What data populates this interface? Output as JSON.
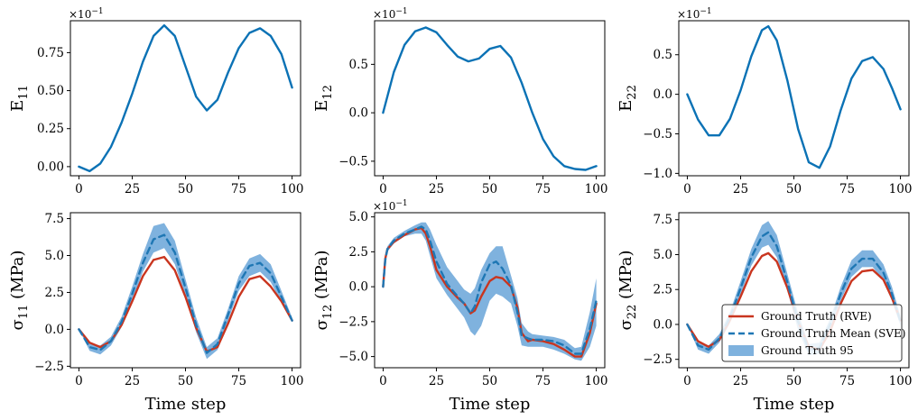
{
  "figure": {
    "x_axis_label": "Time step",
    "colors": {
      "strain": "#0b72b5",
      "rve": "#c9351f",
      "sve": "#1f77b4",
      "band": "#7fb2de"
    }
  },
  "chart_data": [
    {
      "id": "E11",
      "type": "line",
      "ylabel": "E",
      "ylabel_sub": "11",
      "multiplier": "×10",
      "multiplier_exp": "−1",
      "xlim": [
        -4,
        104
      ],
      "ylim": [
        -0.06,
        0.96
      ],
      "yticks": [
        0.0,
        0.25,
        0.5,
        0.75
      ],
      "ytick_labels": [
        "0.00",
        "0.25",
        "0.50",
        "0.75"
      ],
      "xticks": [
        0,
        25,
        50,
        75,
        100
      ],
      "xtick_labels": [
        "0",
        "25",
        "50",
        "75",
        "100"
      ],
      "series": [
        {
          "name": "E11",
          "x": [
            0,
            5,
            10,
            15,
            20,
            25,
            30,
            35,
            40,
            45,
            50,
            55,
            60,
            65,
            70,
            75,
            80,
            85,
            90,
            95,
            100
          ],
          "y": [
            0.0,
            -0.03,
            0.02,
            0.13,
            0.29,
            0.48,
            0.69,
            0.86,
            0.93,
            0.86,
            0.66,
            0.46,
            0.37,
            0.44,
            0.62,
            0.78,
            0.88,
            0.91,
            0.86,
            0.74,
            0.52
          ]
        }
      ]
    },
    {
      "id": "E12",
      "type": "line",
      "ylabel": "E",
      "ylabel_sub": "12",
      "multiplier": "×10",
      "multiplier_exp": "−1",
      "xlim": [
        -4,
        104
      ],
      "ylim": [
        -0.65,
        0.95
      ],
      "yticks": [
        -0.5,
        0.0,
        0.5
      ],
      "ytick_labels": [
        "−0.5",
        "0.0",
        "0.5"
      ],
      "xticks": [
        0,
        25,
        50,
        75,
        100
      ],
      "xtick_labels": [
        "0",
        "25",
        "50",
        "75",
        "100"
      ],
      "series": [
        {
          "name": "E12",
          "x": [
            0,
            5,
            10,
            15,
            20,
            25,
            30,
            35,
            40,
            45,
            50,
            55,
            60,
            65,
            70,
            75,
            80,
            85,
            90,
            95,
            100
          ],
          "y": [
            0.0,
            0.42,
            0.7,
            0.84,
            0.88,
            0.83,
            0.7,
            0.58,
            0.53,
            0.56,
            0.66,
            0.69,
            0.57,
            0.31,
            0.0,
            -0.27,
            -0.45,
            -0.55,
            -0.58,
            -0.59,
            -0.55
          ]
        }
      ]
    },
    {
      "id": "E22",
      "type": "line",
      "ylabel": "E",
      "ylabel_sub": "22",
      "multiplier": "×10",
      "multiplier_exp": "−1",
      "xlim": [
        -4,
        104
      ],
      "ylim": [
        -1.03,
        0.93
      ],
      "yticks": [
        -1.0,
        -0.5,
        0.0,
        0.5
      ],
      "ytick_labels": [
        "−1.0",
        "−0.5",
        "0.0",
        "0.5"
      ],
      "xticks": [
        0,
        25,
        50,
        75,
        100
      ],
      "xtick_labels": [
        "0",
        "25",
        "50",
        "75",
        "100"
      ],
      "series": [
        {
          "name": "E22",
          "x": [
            0,
            5,
            10,
            15,
            20,
            25,
            30,
            35,
            38,
            42,
            47,
            52,
            57,
            62,
            67,
            72,
            77,
            82,
            87,
            92,
            96,
            100
          ],
          "y": [
            0.0,
            -0.32,
            -0.52,
            -0.52,
            -0.31,
            0.05,
            0.48,
            0.81,
            0.86,
            0.68,
            0.17,
            -0.44,
            -0.86,
            -0.93,
            -0.66,
            -0.2,
            0.2,
            0.42,
            0.47,
            0.32,
            0.08,
            -0.19
          ]
        }
      ]
    },
    {
      "id": "S11",
      "type": "line",
      "ylabel": "σ",
      "ylabel_sub": "11",
      "ylabel_unit": " (MPa)",
      "xlabel": "Time step",
      "xlim": [
        -4,
        104
      ],
      "ylim": [
        -2.6,
        7.9
      ],
      "yticks": [
        -2.5,
        0.0,
        2.5,
        5.0,
        7.5
      ],
      "ytick_labels": [
        "−2.5",
        "0.0",
        "2.5",
        "5.0",
        "7.5"
      ],
      "xticks": [
        0,
        25,
        50,
        75,
        100
      ],
      "xtick_labels": [
        "0",
        "25",
        "50",
        "75",
        "100"
      ],
      "series": [
        {
          "name": "Ground Truth (RVE)",
          "x": [
            0,
            5,
            10,
            15,
            20,
            25,
            30,
            35,
            40,
            45,
            50,
            55,
            60,
            65,
            70,
            75,
            80,
            85,
            90,
            95,
            100
          ],
          "y": [
            0.0,
            -0.9,
            -1.2,
            -0.8,
            0.3,
            1.9,
            3.6,
            4.7,
            4.9,
            4.0,
            2.2,
            0.1,
            -1.5,
            -1.2,
            0.4,
            2.2,
            3.4,
            3.6,
            2.9,
            1.9,
            0.6
          ]
        },
        {
          "name": "Ground Truth Mean (SVE)",
          "x": [
            0,
            5,
            10,
            15,
            20,
            25,
            30,
            35,
            40,
            45,
            50,
            55,
            60,
            65,
            70,
            75,
            80,
            85,
            90,
            95,
            100
          ],
          "y": [
            0.0,
            -1.2,
            -1.4,
            -0.8,
            0.5,
            2.4,
            4.5,
            6.1,
            6.4,
            5.2,
            2.8,
            0.3,
            -1.6,
            -1.0,
            1.0,
            3.1,
            4.3,
            4.5,
            3.8,
            2.2,
            0.6
          ],
          "lower": [
            0.0,
            -1.45,
            -1.7,
            -1.1,
            0.15,
            1.9,
            3.9,
            5.2,
            5.5,
            4.4,
            2.2,
            -0.2,
            -2.0,
            -1.4,
            0.6,
            2.6,
            3.6,
            3.9,
            3.2,
            1.8,
            0.5
          ],
          "upper": [
            0.0,
            -0.95,
            -1.1,
            -0.5,
            0.85,
            2.9,
            5.1,
            7.0,
            7.2,
            6.0,
            3.4,
            0.8,
            -1.2,
            -0.6,
            1.4,
            3.6,
            4.8,
            5.1,
            4.4,
            2.6,
            0.8
          ]
        }
      ]
    },
    {
      "id": "S12",
      "type": "line",
      "ylabel": "σ",
      "ylabel_sub": "12",
      "ylabel_unit": " (MPa)",
      "xlabel": "Time step",
      "multiplier": "×10",
      "multiplier_exp": "−1",
      "xlim": [
        -4,
        104
      ],
      "ylim": [
        -5.8,
        5.3
      ],
      "yticks": [
        -5.0,
        -2.5,
        0.0,
        2.5,
        5.0
      ],
      "ytick_labels": [
        "−5.0",
        "−2.5",
        "0.0",
        "2.5",
        "5.0"
      ],
      "xticks": [
        0,
        25,
        50,
        75,
        100
      ],
      "xtick_labels": [
        "0",
        "25",
        "50",
        "75",
        "100"
      ],
      "series": [
        {
          "name": "Ground Truth (RVE)",
          "x": [
            0,
            1,
            2,
            5,
            10,
            15,
            18,
            20,
            22,
            25,
            30,
            35,
            38,
            41,
            43,
            46,
            50,
            53,
            56,
            60,
            63,
            65,
            68,
            70,
            75,
            80,
            85,
            90,
            93,
            97,
            100
          ],
          "y": [
            0.0,
            2.0,
            2.7,
            3.2,
            3.7,
            4.1,
            4.2,
            3.8,
            2.9,
            1.2,
            0.0,
            -0.8,
            -1.2,
            -1.9,
            -1.7,
            -0.7,
            0.4,
            0.7,
            0.6,
            0.0,
            -1.5,
            -3.3,
            -3.9,
            -3.8,
            -3.9,
            -4.1,
            -4.5,
            -5.0,
            -5.0,
            -3.3,
            -1.2
          ]
        },
        {
          "name": "Ground Truth Mean (SVE)",
          "x": [
            0,
            1,
            2,
            5,
            10,
            15,
            18,
            20,
            22,
            25,
            30,
            35,
            38,
            41,
            43,
            46,
            50,
            53,
            56,
            60,
            63,
            65,
            68,
            70,
            75,
            80,
            85,
            90,
            93,
            97,
            100
          ],
          "y": [
            0.0,
            1.9,
            2.7,
            3.3,
            3.8,
            4.1,
            4.3,
            4.1,
            3.3,
            1.8,
            0.2,
            -0.7,
            -1.2,
            -1.9,
            -1.4,
            0.3,
            1.6,
            1.8,
            1.3,
            0.1,
            -1.8,
            -3.5,
            -3.7,
            -3.8,
            -3.8,
            -3.9,
            -4.2,
            -4.8,
            -4.8,
            -3.0,
            -1.0
          ],
          "lower": [
            0.0,
            1.6,
            2.5,
            3.1,
            3.6,
            3.8,
            3.8,
            3.3,
            2.2,
            0.6,
            -0.6,
            -1.6,
            -2.2,
            -3.2,
            -3.5,
            -2.8,
            -1.0,
            -0.5,
            -0.7,
            -1.2,
            -2.8,
            -4.2,
            -4.3,
            -4.3,
            -4.3,
            -4.5,
            -4.8,
            -5.2,
            -5.3,
            -4.3,
            -2.8
          ],
          "upper": [
            0.0,
            2.2,
            2.9,
            3.5,
            4.0,
            4.4,
            4.6,
            4.6,
            4.1,
            3.0,
            1.4,
            0.4,
            -0.2,
            -0.5,
            -0.1,
            1.2,
            2.4,
            2.9,
            2.9,
            0.8,
            -0.8,
            -2.6,
            -3.2,
            -3.4,
            -3.5,
            -3.6,
            -3.8,
            -4.4,
            -4.3,
            -1.8,
            0.6
          ]
        }
      ]
    },
    {
      "id": "S22",
      "type": "line",
      "ylabel": "σ",
      "ylabel_sub": "22",
      "ylabel_unit": " (MPa)",
      "xlabel": "Time step",
      "xlim": [
        -4,
        104
      ],
      "ylim": [
        -3.1,
        8.0
      ],
      "yticks": [
        -2.5,
        0.0,
        2.5,
        5.0,
        7.5
      ],
      "ytick_labels": [
        "−2.5",
        "0.0",
        "2.5",
        "5.0",
        "7.5"
      ],
      "xticks": [
        0,
        25,
        50,
        75,
        100
      ],
      "xtick_labels": [
        "0",
        "25",
        "50",
        "75",
        "100"
      ],
      "legend": "lower-right",
      "series": [
        {
          "name": "Ground Truth (RVE)",
          "x": [
            0,
            5,
            10,
            15,
            20,
            25,
            30,
            35,
            38,
            42,
            47,
            52,
            57,
            62,
            67,
            72,
            77,
            82,
            87,
            92,
            96,
            100
          ],
          "y": [
            0.0,
            -1.2,
            -1.6,
            -1.1,
            0.3,
            2.0,
            3.8,
            4.9,
            5.1,
            4.5,
            2.6,
            0.2,
            -1.6,
            -1.8,
            -0.5,
            1.5,
            3.1,
            3.8,
            3.9,
            3.2,
            1.9,
            0.3
          ]
        },
        {
          "name": "Ground Truth Mean (SVE)",
          "x": [
            0,
            5,
            10,
            15,
            20,
            25,
            30,
            35,
            38,
            42,
            47,
            52,
            57,
            62,
            67,
            72,
            77,
            82,
            87,
            92,
            96,
            100
          ],
          "y": [
            0.0,
            -1.5,
            -1.8,
            -1.0,
            0.5,
            2.6,
            4.8,
            6.3,
            6.6,
            5.6,
            3.0,
            0.2,
            -1.8,
            -1.7,
            0.0,
            2.2,
            4.0,
            4.7,
            4.7,
            3.7,
            2.2,
            0.2
          ],
          "lower": [
            0.0,
            -1.8,
            -2.1,
            -1.3,
            0.1,
            2.1,
            4.2,
            5.5,
            5.7,
            4.8,
            2.4,
            -0.4,
            -2.2,
            -2.1,
            -0.4,
            1.7,
            3.4,
            4.1,
            4.1,
            3.1,
            1.7,
            -0.1
          ],
          "upper": [
            0.0,
            -1.2,
            -1.5,
            -0.7,
            0.9,
            3.1,
            5.4,
            7.1,
            7.4,
            6.4,
            3.6,
            0.8,
            -1.4,
            -1.3,
            0.4,
            2.7,
            4.6,
            5.3,
            5.3,
            4.3,
            2.7,
            0.6
          ]
        },
        {
          "name": "Ground Truth 95",
          "kind": "band"
        }
      ]
    }
  ]
}
